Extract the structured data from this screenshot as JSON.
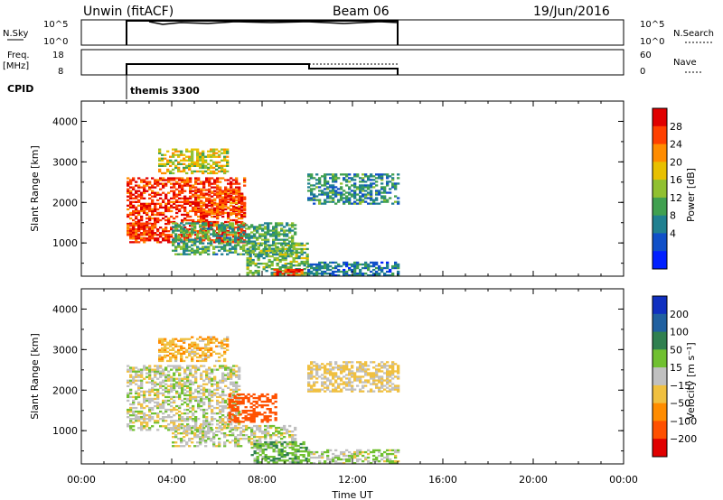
{
  "header": {
    "station": "Unwin (fitACF)",
    "beam": "Beam 06",
    "date": "19/Jun/2016"
  },
  "strips": {
    "nsky": {
      "label": "N.Sky",
      "ticks": [
        "10^5",
        "10^0"
      ],
      "right_ticks": [
        "10^5",
        "10^0"
      ],
      "right_label": "N.Search"
    },
    "freq": {
      "label_line1": "Freq.",
      "label_line2": "[MHz]",
      "ticks": [
        "18",
        "8"
      ],
      "right_ticks": [
        "60",
        "0"
      ],
      "right_label": "Nave"
    },
    "cpid": {
      "label": "CPID",
      "program": "themis 3300"
    }
  },
  "chart_data": [
    {
      "type": "heatmap",
      "name": "power",
      "ylabel": "Slant Range [km]",
      "xlabel": "",
      "ylim": [
        180,
        4500
      ],
      "yticks": [
        "4000",
        "3000",
        "2000",
        "1000"
      ],
      "xlim": [
        0,
        24
      ],
      "colorbar": {
        "label": "Power [dB]",
        "ticks": [
          "28",
          "24",
          "20",
          "16",
          "12",
          "8",
          "4"
        ],
        "colors": [
          "#0020ff",
          "#1050c8",
          "#208090",
          "#40a050",
          "#90c030",
          "#e8c000",
          "#ff8c00",
          "#ff4000",
          "#e00000"
        ]
      },
      "echo_regions": [
        {
          "t0": 2.0,
          "t1": 7.2,
          "r0": 1000,
          "r1": 2600,
          "level": 28
        },
        {
          "t0": 5.0,
          "t1": 7.2,
          "r0": 1700,
          "r1": 2300,
          "level": 26
        },
        {
          "t0": 2.0,
          "t1": 3.2,
          "r0": 1100,
          "r1": 1500,
          "level": 27
        },
        {
          "t0": 3.4,
          "t1": 6.5,
          "r0": 2700,
          "r1": 3300,
          "level": 18
        },
        {
          "t0": 4.0,
          "t1": 9.5,
          "r0": 700,
          "r1": 1500,
          "level": 12
        },
        {
          "t0": 7.3,
          "t1": 10.0,
          "r0": 200,
          "r1": 1000,
          "level": 14
        },
        {
          "t0": 8.5,
          "t1": 9.8,
          "r0": 180,
          "r1": 320,
          "level": 28
        },
        {
          "t0": 10.0,
          "t1": 14.0,
          "r0": 1950,
          "r1": 2700,
          "level": 10
        },
        {
          "t0": 10.0,
          "t1": 14.0,
          "r0": 180,
          "r1": 500,
          "level": 8
        }
      ]
    },
    {
      "type": "heatmap",
      "name": "velocity",
      "ylabel": "Slant Range [km]",
      "xlabel": "Time UT",
      "ylim": [
        180,
        4500
      ],
      "yticks": [
        "4000",
        "3000",
        "2000",
        "1000"
      ],
      "xlim": [
        0,
        24
      ],
      "xticks": [
        "00:00",
        "04:00",
        "08:00",
        "12:00",
        "16:00",
        "20:00",
        "00:00"
      ],
      "colorbar": {
        "label": "Velocity [m s⁻¹]",
        "ticks": [
          "200",
          "100",
          "50",
          "15",
          "−15",
          "−50",
          "−100",
          "−200"
        ],
        "colors": [
          "#1030c0",
          "#2060a0",
          "#308050",
          "#70c030",
          "#c0c0c0",
          "#f0c040",
          "#ff8c00",
          "#ff5000",
          "#e00000"
        ]
      },
      "echo_regions": [
        {
          "t0": 2.0,
          "t1": 7.0,
          "r0": 1000,
          "r1": 2600,
          "level": 0
        },
        {
          "t0": 3.4,
          "t1": 6.5,
          "r0": 2700,
          "r1": 3300,
          "level": -40
        },
        {
          "t0": 6.5,
          "t1": 8.6,
          "r0": 1200,
          "r1": 1900,
          "level": -130
        },
        {
          "t0": 4.0,
          "t1": 9.5,
          "r0": 600,
          "r1": 1100,
          "level": 0
        },
        {
          "t0": 7.5,
          "t1": 10.0,
          "r0": 200,
          "r1": 700,
          "level": 40
        },
        {
          "t0": 10.0,
          "t1": 14.0,
          "r0": 1950,
          "r1": 2700,
          "level": -20
        },
        {
          "t0": 10.0,
          "t1": 14.0,
          "r0": 180,
          "r1": 500,
          "level": 10
        }
      ]
    }
  ]
}
